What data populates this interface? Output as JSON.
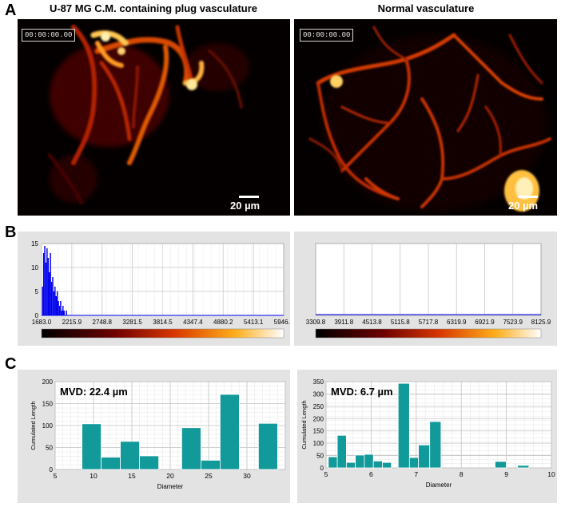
{
  "panel_a": {
    "letter": "A",
    "left_title": "U-87 MG C.M. containing plug vasculature",
    "right_title": "Normal vasculature",
    "left_timestamp": "00:00:00.00",
    "right_timestamp": "00:00:00.00",
    "left_scale": "20 µm",
    "right_scale": "20 µm"
  },
  "panel_b": {
    "letter": "B",
    "left_y_ticks": [
      "15",
      "10",
      "5",
      "0"
    ],
    "left_x_ticks": [
      "1683.0",
      "2215.9",
      "2748.8",
      "3281.5",
      "3814.5",
      "4347.4",
      "4880.2",
      "5413.1",
      "5946.0"
    ],
    "right_x_ticks": [
      "3309.8",
      "3911.8",
      "4513.8",
      "5115.8",
      "5717.8",
      "6319.9",
      "6921.9",
      "7523.9",
      "8125.9"
    ]
  },
  "panel_c": {
    "letter": "C",
    "left_mvd": "MVD: 22.4 µm",
    "right_mvd": "MVD: 6.7 µm",
    "ylabel": "Cumulated Length",
    "xlabel": "Diameter"
  },
  "colors": {
    "histogram_blue": "#0000ee",
    "bar_teal": "#12999a",
    "panel_gray": "#e3e3e3"
  },
  "chart_data": [
    {
      "type": "bar",
      "id": "b-left-intensity-histogram",
      "x_ticks": [
        1683.0,
        2215.9,
        2748.8,
        3281.5,
        3814.5,
        4347.4,
        4880.2,
        5413.1,
        5946.0
      ],
      "xlim": [
        1683.0,
        5946.0
      ],
      "ylim": [
        0,
        15
      ],
      "grid": true,
      "bins": [
        {
          "x": 1700,
          "y": 6
        },
        {
          "x": 1720,
          "y": 13
        },
        {
          "x": 1740,
          "y": 14.5
        },
        {
          "x": 1760,
          "y": 11
        },
        {
          "x": 1780,
          "y": 14
        },
        {
          "x": 1800,
          "y": 12
        },
        {
          "x": 1820,
          "y": 9
        },
        {
          "x": 1840,
          "y": 13
        },
        {
          "x": 1860,
          "y": 7
        },
        {
          "x": 1880,
          "y": 8
        },
        {
          "x": 1900,
          "y": 5
        },
        {
          "x": 1920,
          "y": 6
        },
        {
          "x": 1940,
          "y": 4
        },
        {
          "x": 1960,
          "y": 5
        },
        {
          "x": 1980,
          "y": 3
        },
        {
          "x": 2000,
          "y": 2
        },
        {
          "x": 2020,
          "y": 3
        },
        {
          "x": 2040,
          "y": 1
        },
        {
          "x": 2060,
          "y": 2
        },
        {
          "x": 2080,
          "y": 1
        },
        {
          "x": 2120,
          "y": 1
        }
      ]
    },
    {
      "type": "line",
      "id": "b-right-intensity-histogram",
      "x_ticks": [
        3309.8,
        3911.8,
        4513.8,
        5115.8,
        5717.8,
        6319.9,
        6921.9,
        7523.9,
        8125.9
      ],
      "xlim": [
        3309.8,
        8125.9
      ],
      "ylim": [
        0,
        1
      ],
      "grid": true,
      "values": [
        0,
        0
      ]
    },
    {
      "type": "bar",
      "id": "c-left-diameter",
      "xlabel": "Diameter",
      "ylabel": "Cumulated Length",
      "xlim": [
        5,
        35
      ],
      "ylim": [
        0,
        200
      ],
      "x_ticks": [
        5,
        10,
        15,
        20,
        25,
        30
      ],
      "y_ticks": [
        0,
        50,
        100,
        150,
        200
      ],
      "bars": [
        {
          "x0": 8.5,
          "x1": 11,
          "y": 104
        },
        {
          "x0": 11,
          "x1": 13.5,
          "y": 28
        },
        {
          "x0": 13.5,
          "x1": 16,
          "y": 64
        },
        {
          "x0": 16,
          "x1": 18.5,
          "y": 31
        },
        {
          "x0": 21.5,
          "x1": 24,
          "y": 95
        },
        {
          "x0": 24,
          "x1": 26.5,
          "y": 21
        },
        {
          "x0": 26.5,
          "x1": 29,
          "y": 171
        },
        {
          "x0": 31.5,
          "x1": 34,
          "y": 105
        }
      ]
    },
    {
      "type": "bar",
      "id": "c-right-diameter",
      "xlabel": "Diameter",
      "ylabel": "Cumulated Length",
      "xlim": [
        5,
        10
      ],
      "ylim": [
        0,
        350
      ],
      "x_ticks": [
        5,
        6,
        7,
        8,
        9,
        10
      ],
      "y_ticks": [
        0,
        50,
        100,
        150,
        200,
        250,
        300,
        350
      ],
      "bars": [
        {
          "x0": 5.05,
          "x1": 5.25,
          "y": 45
        },
        {
          "x0": 5.25,
          "x1": 5.45,
          "y": 132
        },
        {
          "x0": 5.45,
          "x1": 5.65,
          "y": 22
        },
        {
          "x0": 5.65,
          "x1": 5.85,
          "y": 52
        },
        {
          "x0": 5.85,
          "x1": 6.05,
          "y": 55
        },
        {
          "x0": 6.05,
          "x1": 6.25,
          "y": 28
        },
        {
          "x0": 6.25,
          "x1": 6.45,
          "y": 22
        },
        {
          "x0": 6.6,
          "x1": 6.85,
          "y": 343
        },
        {
          "x0": 6.85,
          "x1": 7.05,
          "y": 42
        },
        {
          "x0": 7.05,
          "x1": 7.3,
          "y": 93
        },
        {
          "x0": 7.3,
          "x1": 7.55,
          "y": 188
        },
        {
          "x0": 8.75,
          "x1": 9.0,
          "y": 26
        },
        {
          "x0": 9.25,
          "x1": 9.5,
          "y": 10
        }
      ]
    }
  ]
}
